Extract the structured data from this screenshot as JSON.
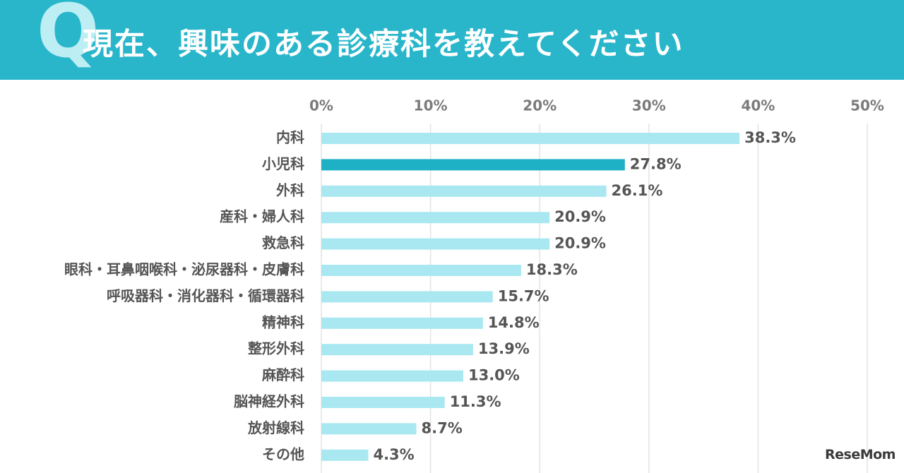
{
  "header": {
    "q_mark": "Q",
    "title": "現在、興味のある診療科を教えてください"
  },
  "colors": {
    "banner": "#29b6cb",
    "bar": "#a9e8f1",
    "highlight_bar": "#1eb1c6",
    "grid": "#e3e3e3"
  },
  "logo": {
    "text": "ReseMom"
  },
  "chart_data": {
    "type": "bar",
    "orientation": "horizontal",
    "title": "現在、興味のある診療科を教えてください",
    "xlim": [
      0,
      50
    ],
    "x_ticks": [
      "0%",
      "10%",
      "20%",
      "30%",
      "40%",
      "50%"
    ],
    "x_tick_values": [
      0,
      10,
      20,
      30,
      40,
      50
    ],
    "grid": true,
    "categories": [
      "内科",
      "小児科",
      "外科",
      "産科・婦人科",
      "救急科",
      "眼科・耳鼻咽喉科・泌尿器科・皮膚科",
      "呼吸器科・消化器科・循環器科",
      "精神科",
      "整形外科",
      "麻酔科",
      "脳神経外科",
      "放射線科",
      "その他"
    ],
    "values": [
      38.3,
      27.8,
      26.1,
      20.9,
      20.9,
      18.3,
      15.7,
      14.8,
      13.9,
      13.0,
      11.3,
      8.7,
      4.3
    ],
    "value_labels": [
      "38.3%",
      "27.8%",
      "26.1%",
      "20.9%",
      "20.9%",
      "18.3%",
      "15.7%",
      "14.8%",
      "13.9%",
      "13.0%",
      "11.3%",
      "8.7%",
      "4.3%"
    ],
    "highlight": "小児科"
  }
}
